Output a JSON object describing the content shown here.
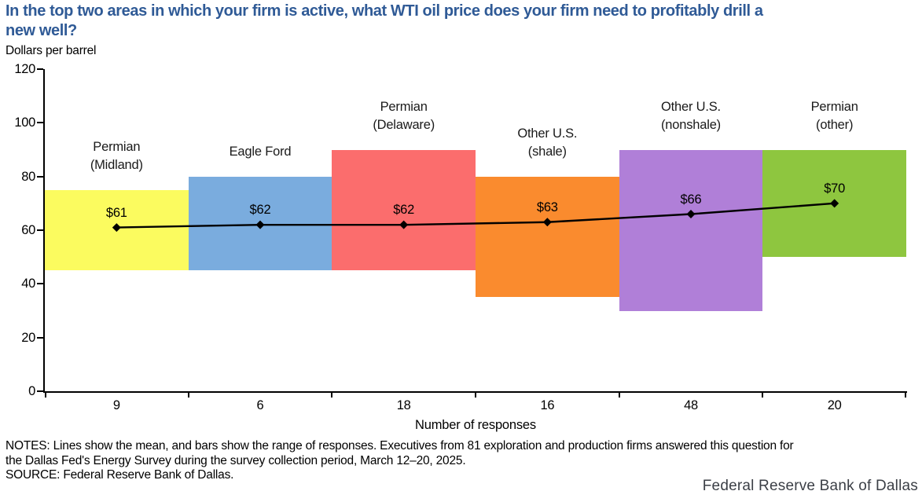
{
  "header": {
    "title_lines": [
      "In the top two areas in which your firm is active, what WTI oil price does your firm need to profitably drill a",
      "new well?"
    ]
  },
  "footer_text": {
    "notes_lines": [
      "NOTES: Lines show the mean, and bars show the range of responses. Executives from 81 exploration and production firms answered this question for",
      "the Dallas Fed's Energy Survey during the survey collection period, March 12–20, 2025."
    ],
    "source": "SOURCE: Federal Reserve Bank of Dallas.",
    "brand": "Federal Reserve Bank of Dallas"
  },
  "chart_data": {
    "type": "bar",
    "subtype": "floating-range-bars-with-mean-line",
    "title": "In the top two areas in which your firm is active, what WTI oil price does your firm need to profitably drill a new well?",
    "y_axis": {
      "label": "Dollars per barrel",
      "min": 0,
      "max": 120,
      "ticks": [
        0,
        20,
        40,
        60,
        80,
        100,
        120
      ]
    },
    "x_axis": {
      "label": "Number of responses"
    },
    "legend": "none",
    "grid": "off",
    "line_color": "#000000",
    "marker": "diamond",
    "title_color": "#2f5a96",
    "categories": [
      {
        "name": "Permian (Midland)",
        "label_lines": [
          "Permian",
          "(Midland)"
        ],
        "responses": 9,
        "range": [
          45,
          75
        ],
        "mean": 61,
        "mean_label": "$61",
        "color": "#fbfb5f"
      },
      {
        "name": "Eagle Ford",
        "label_lines": [
          "Eagle Ford"
        ],
        "responses": 6,
        "range": [
          45,
          80
        ],
        "mean": 62,
        "mean_label": "$62",
        "color": "#7aacde"
      },
      {
        "name": "Permian (Delaware)",
        "label_lines": [
          "Permian",
          "(Delaware)"
        ],
        "responses": 18,
        "range": [
          45,
          90
        ],
        "mean": 62,
        "mean_label": "$62",
        "color": "#fb6d6d"
      },
      {
        "name": "Other U.S. (shale)",
        "label_lines": [
          "Other U.S.",
          "(shale)"
        ],
        "responses": 16,
        "range": [
          35,
          80
        ],
        "mean": 63,
        "mean_label": "$63",
        "color": "#fa8b2e"
      },
      {
        "name": "Other U.S. (nonshale)",
        "label_lines": [
          "Other U.S.",
          "(nonshale)"
        ],
        "responses": 48,
        "range": [
          30,
          90
        ],
        "mean": 66,
        "mean_label": "$66",
        "color": "#b07fd8"
      },
      {
        "name": "Permian (other)",
        "label_lines": [
          "Permian",
          "(other)"
        ],
        "responses": 20,
        "range": [
          50,
          90
        ],
        "mean": 70,
        "mean_label": "$70",
        "color": "#8ec63f"
      }
    ]
  }
}
